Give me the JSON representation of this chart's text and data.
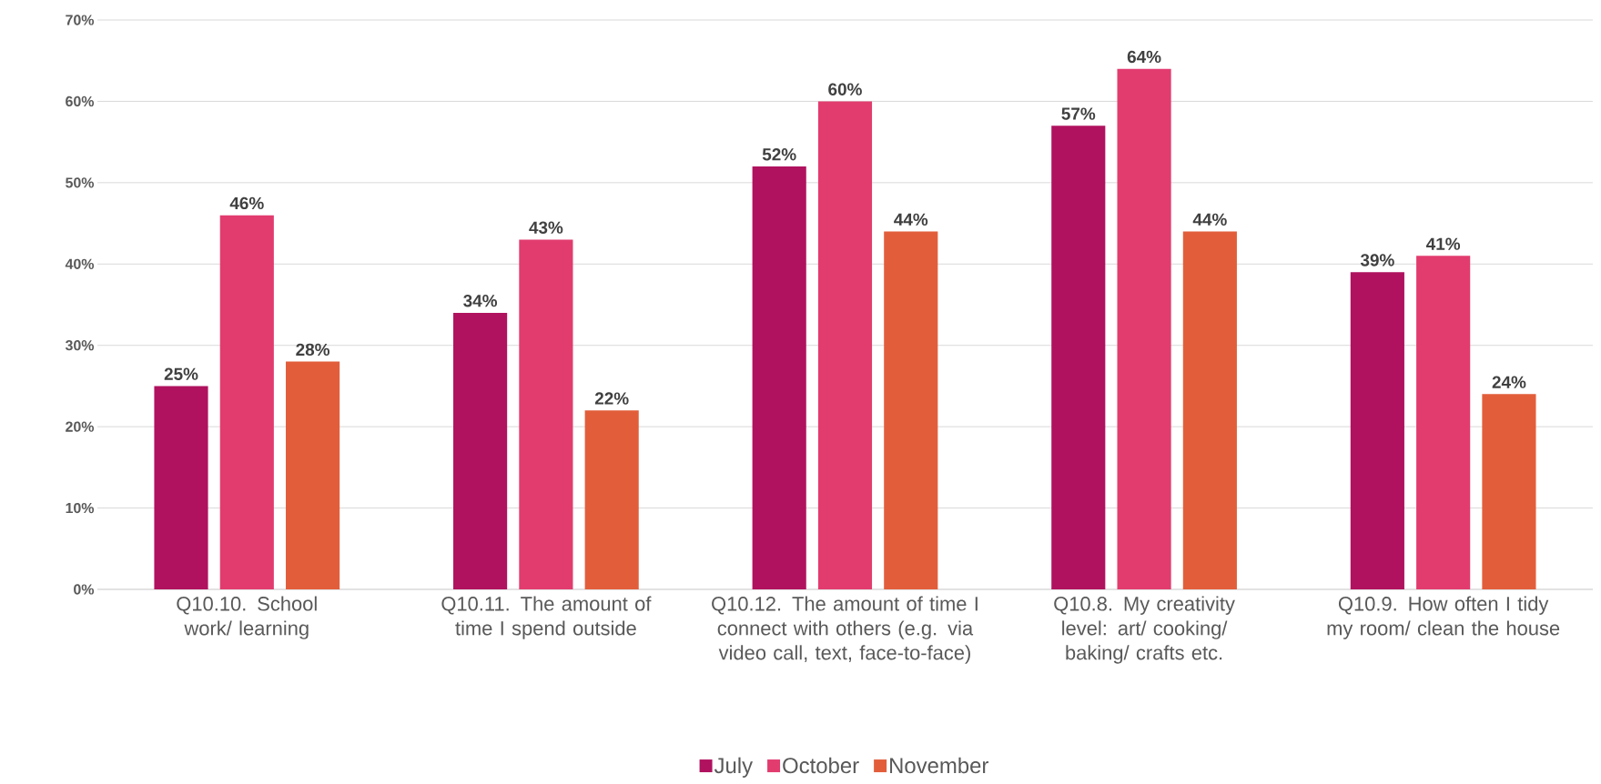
{
  "chart_data": {
    "type": "bar",
    "categories": [
      "Q10.10. School work/ learning",
      "Q10.11. The amount of time I spend outside",
      "Q10.12. The amount of time I connect with others (e.g. via video call, text, face-to-face)",
      "Q10.8. My creativity level: art/ cooking/ baking/ crafts etc.",
      "Q10.9. How often I tidy my room/ clean the house"
    ],
    "series": [
      {
        "name": "July",
        "color": "#b0125f",
        "values": [
          25,
          34,
          52,
          57,
          39
        ],
        "value_labels": [
          "25%",
          "34%",
          "52%",
          "57%",
          "39%"
        ]
      },
      {
        "name": "October",
        "color": "#e23c6f",
        "values": [
          46,
          43,
          60,
          64,
          41
        ],
        "value_labels": [
          "46%",
          "43%",
          "60%",
          "64%",
          "41%"
        ]
      },
      {
        "name": "November",
        "color": "#e25e3b",
        "values": [
          28,
          22,
          44,
          44,
          24
        ],
        "value_labels": [
          "28%",
          "22%",
          "44%",
          "44%",
          "24%"
        ]
      }
    ],
    "ylim": [
      0,
      70
    ],
    "yticks": [
      {
        "value": 0,
        "label": "0%"
      },
      {
        "value": 10,
        "label": "10%"
      },
      {
        "value": 20,
        "label": "20%"
      },
      {
        "value": 30,
        "label": "30%"
      },
      {
        "value": 40,
        "label": "40%"
      },
      {
        "value": 50,
        "label": "50%"
      },
      {
        "value": 60,
        "label": "60%"
      },
      {
        "value": 70,
        "label": "70%"
      }
    ],
    "grid": "y",
    "legend": "bottom"
  }
}
